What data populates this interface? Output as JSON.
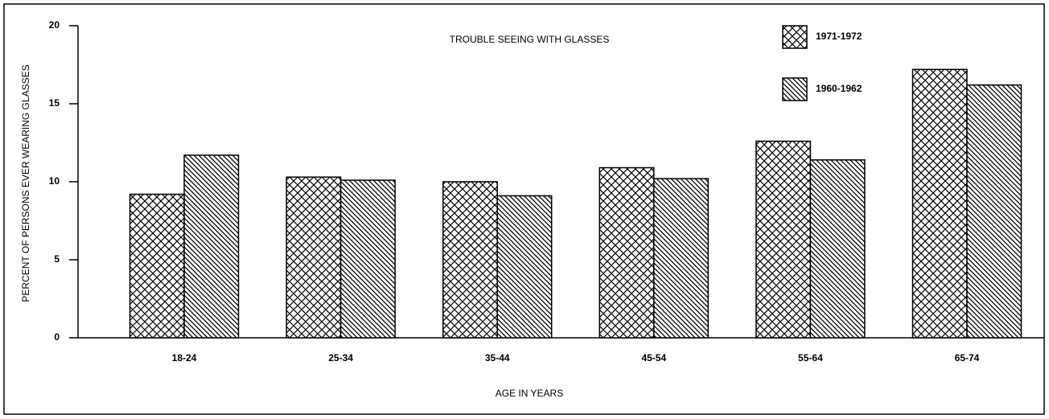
{
  "chart_data": {
    "type": "bar",
    "title": "TROUBLE SEEING WITH GLASSES",
    "x_label": "AGE IN YEARS",
    "y_label": "PERCENT OF PERSONS EVER WEARING GLASSES",
    "categories": [
      "18-24",
      "25-34",
      "35-44",
      "45-54",
      "55-64",
      "65-74"
    ],
    "series": [
      {
        "name": "1971-1972",
        "color": "#000000",
        "pattern": "crosshatch",
        "values": [
          9.2,
          10.3,
          10.0,
          10.9,
          12.6,
          17.2
        ]
      },
      {
        "name": "1960-1962",
        "color": "#000000",
        "pattern": "diagonal",
        "values": [
          11.7,
          10.1,
          9.1,
          10.2,
          11.4,
          16.2
        ]
      }
    ],
    "ylim": [
      0,
      20
    ],
    "yticks": [
      0,
      5,
      10,
      15,
      20
    ],
    "grid": false,
    "legend": "top-right"
  }
}
